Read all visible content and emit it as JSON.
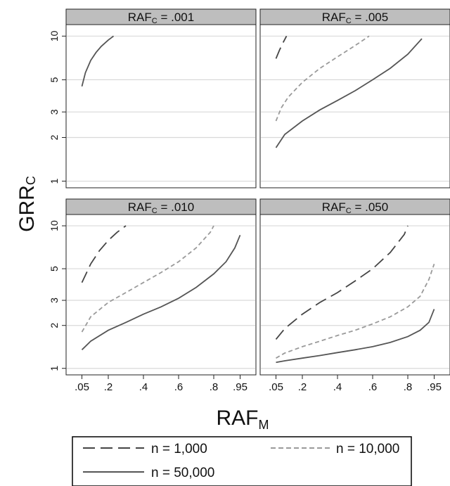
{
  "figure": {
    "ylabel_main": "GRR",
    "ylabel_sub": "C",
    "xlabel_main": "RAF",
    "xlabel_sub": "M"
  },
  "legend": [
    {
      "label": "n = 1,000",
      "style": "longdash"
    },
    {
      "label": "n = 10,000",
      "style": "shortdash"
    },
    {
      "label": "n = 50,000",
      "style": "solid"
    }
  ],
  "colors": {
    "panel_header_bg": "#bebebe",
    "grid": "#d9d9d9",
    "n1000": "#444444",
    "n10000": "#9a9a9a",
    "n50000": "#555555"
  },
  "chart_data": [
    {
      "type": "line",
      "title_main": "RAF",
      "title_sub": "C",
      "title_value": " = .001",
      "x_ticks": [
        ".05",
        ".2",
        ".4",
        ".6",
        ".8",
        ".95"
      ],
      "y_ticks": [
        "1",
        "2",
        "3",
        "5",
        "10"
      ],
      "xlim": [
        0.0,
        1.0
      ],
      "ylim": [
        0.9,
        12
      ],
      "yscale": "log",
      "grid": "horizontal",
      "series": [
        {
          "name": "n = 50,000",
          "x": [
            0.05,
            0.07,
            0.1,
            0.13,
            0.16,
            0.2,
            0.23
          ],
          "y": [
            4.5,
            5.6,
            6.8,
            7.7,
            8.5,
            9.4,
            10.0
          ]
        }
      ]
    },
    {
      "type": "line",
      "title_main": "RAF",
      "title_sub": "C",
      "title_value": " = .005",
      "x_ticks": [
        ".05",
        ".2",
        ".4",
        ".6",
        ".8",
        ".95"
      ],
      "y_ticks": [
        "1",
        "2",
        "3",
        "5",
        "10"
      ],
      "xlim": [
        0.0,
        1.0
      ],
      "ylim": [
        0.9,
        12
      ],
      "yscale": "log",
      "grid": "horizontal",
      "series": [
        {
          "name": "n = 1,000",
          "x": [
            0.05,
            0.07,
            0.09,
            0.11
          ],
          "y": [
            7.0,
            8.0,
            9.0,
            10.0
          ]
        },
        {
          "name": "n = 10,000",
          "x": [
            0.05,
            0.08,
            0.12,
            0.2,
            0.3,
            0.4,
            0.5,
            0.58
          ],
          "y": [
            2.6,
            3.2,
            3.8,
            4.8,
            6.0,
            7.2,
            8.6,
            10.0
          ]
        },
        {
          "name": "n = 50,000",
          "x": [
            0.05,
            0.1,
            0.2,
            0.3,
            0.4,
            0.5,
            0.6,
            0.7,
            0.8,
            0.88
          ],
          "y": [
            1.7,
            2.1,
            2.6,
            3.1,
            3.6,
            4.2,
            5.0,
            6.0,
            7.5,
            9.6
          ]
        }
      ]
    },
    {
      "type": "line",
      "title_main": "RAF",
      "title_sub": "C",
      "title_value": " = .010",
      "x_ticks": [
        ".05",
        ".2",
        ".4",
        ".6",
        ".8",
        ".95"
      ],
      "y_ticks": [
        "1",
        "2",
        "3",
        "5",
        "10"
      ],
      "xlim": [
        0.0,
        1.0
      ],
      "ylim": [
        0.9,
        12
      ],
      "yscale": "log",
      "grid": "horizontal",
      "series": [
        {
          "name": "n = 1,000",
          "x": [
            0.05,
            0.1,
            0.15,
            0.2,
            0.25,
            0.3
          ],
          "y": [
            4.0,
            5.4,
            6.7,
            7.9,
            9.0,
            10.0
          ]
        },
        {
          "name": "n = 10,000",
          "x": [
            0.05,
            0.1,
            0.2,
            0.3,
            0.4,
            0.5,
            0.6,
            0.7,
            0.78,
            0.8
          ],
          "y": [
            1.8,
            2.3,
            2.9,
            3.4,
            4.0,
            4.7,
            5.6,
            7.0,
            9.0,
            10.0
          ]
        },
        {
          "name": "n = 50,000",
          "x": [
            0.05,
            0.1,
            0.2,
            0.3,
            0.4,
            0.5,
            0.6,
            0.7,
            0.8,
            0.87,
            0.92,
            0.95
          ],
          "y": [
            1.35,
            1.55,
            1.85,
            2.1,
            2.4,
            2.7,
            3.1,
            3.7,
            4.6,
            5.6,
            7.0,
            8.6
          ]
        }
      ]
    },
    {
      "type": "line",
      "title_main": "RAF",
      "title_sub": "C",
      "title_value": " = .050",
      "x_ticks": [
        ".05",
        ".2",
        ".4",
        ".6",
        ".8",
        ".95"
      ],
      "y_ticks": [
        "1",
        "2",
        "3",
        "5",
        "10"
      ],
      "xlim": [
        0.0,
        1.0
      ],
      "ylim": [
        0.9,
        12
      ],
      "yscale": "log",
      "grid": "horizontal",
      "series": [
        {
          "name": "n = 1,000",
          "x": [
            0.05,
            0.1,
            0.2,
            0.3,
            0.4,
            0.5,
            0.6,
            0.7,
            0.78,
            0.8
          ],
          "y": [
            1.6,
            1.9,
            2.4,
            2.9,
            3.4,
            4.1,
            5.0,
            6.5,
            8.7,
            10.0
          ]
        },
        {
          "name": "n = 10,000",
          "x": [
            0.05,
            0.1,
            0.2,
            0.3,
            0.4,
            0.5,
            0.6,
            0.7,
            0.8,
            0.87,
            0.92,
            0.95
          ],
          "y": [
            1.18,
            1.28,
            1.42,
            1.55,
            1.7,
            1.85,
            2.05,
            2.3,
            2.7,
            3.2,
            4.2,
            5.4
          ]
        },
        {
          "name": "n = 50,000",
          "x": [
            0.05,
            0.1,
            0.2,
            0.3,
            0.4,
            0.5,
            0.6,
            0.7,
            0.8,
            0.87,
            0.92,
            0.95
          ],
          "y": [
            1.1,
            1.13,
            1.18,
            1.23,
            1.29,
            1.35,
            1.42,
            1.52,
            1.67,
            1.85,
            2.1,
            2.6
          ]
        }
      ]
    }
  ]
}
